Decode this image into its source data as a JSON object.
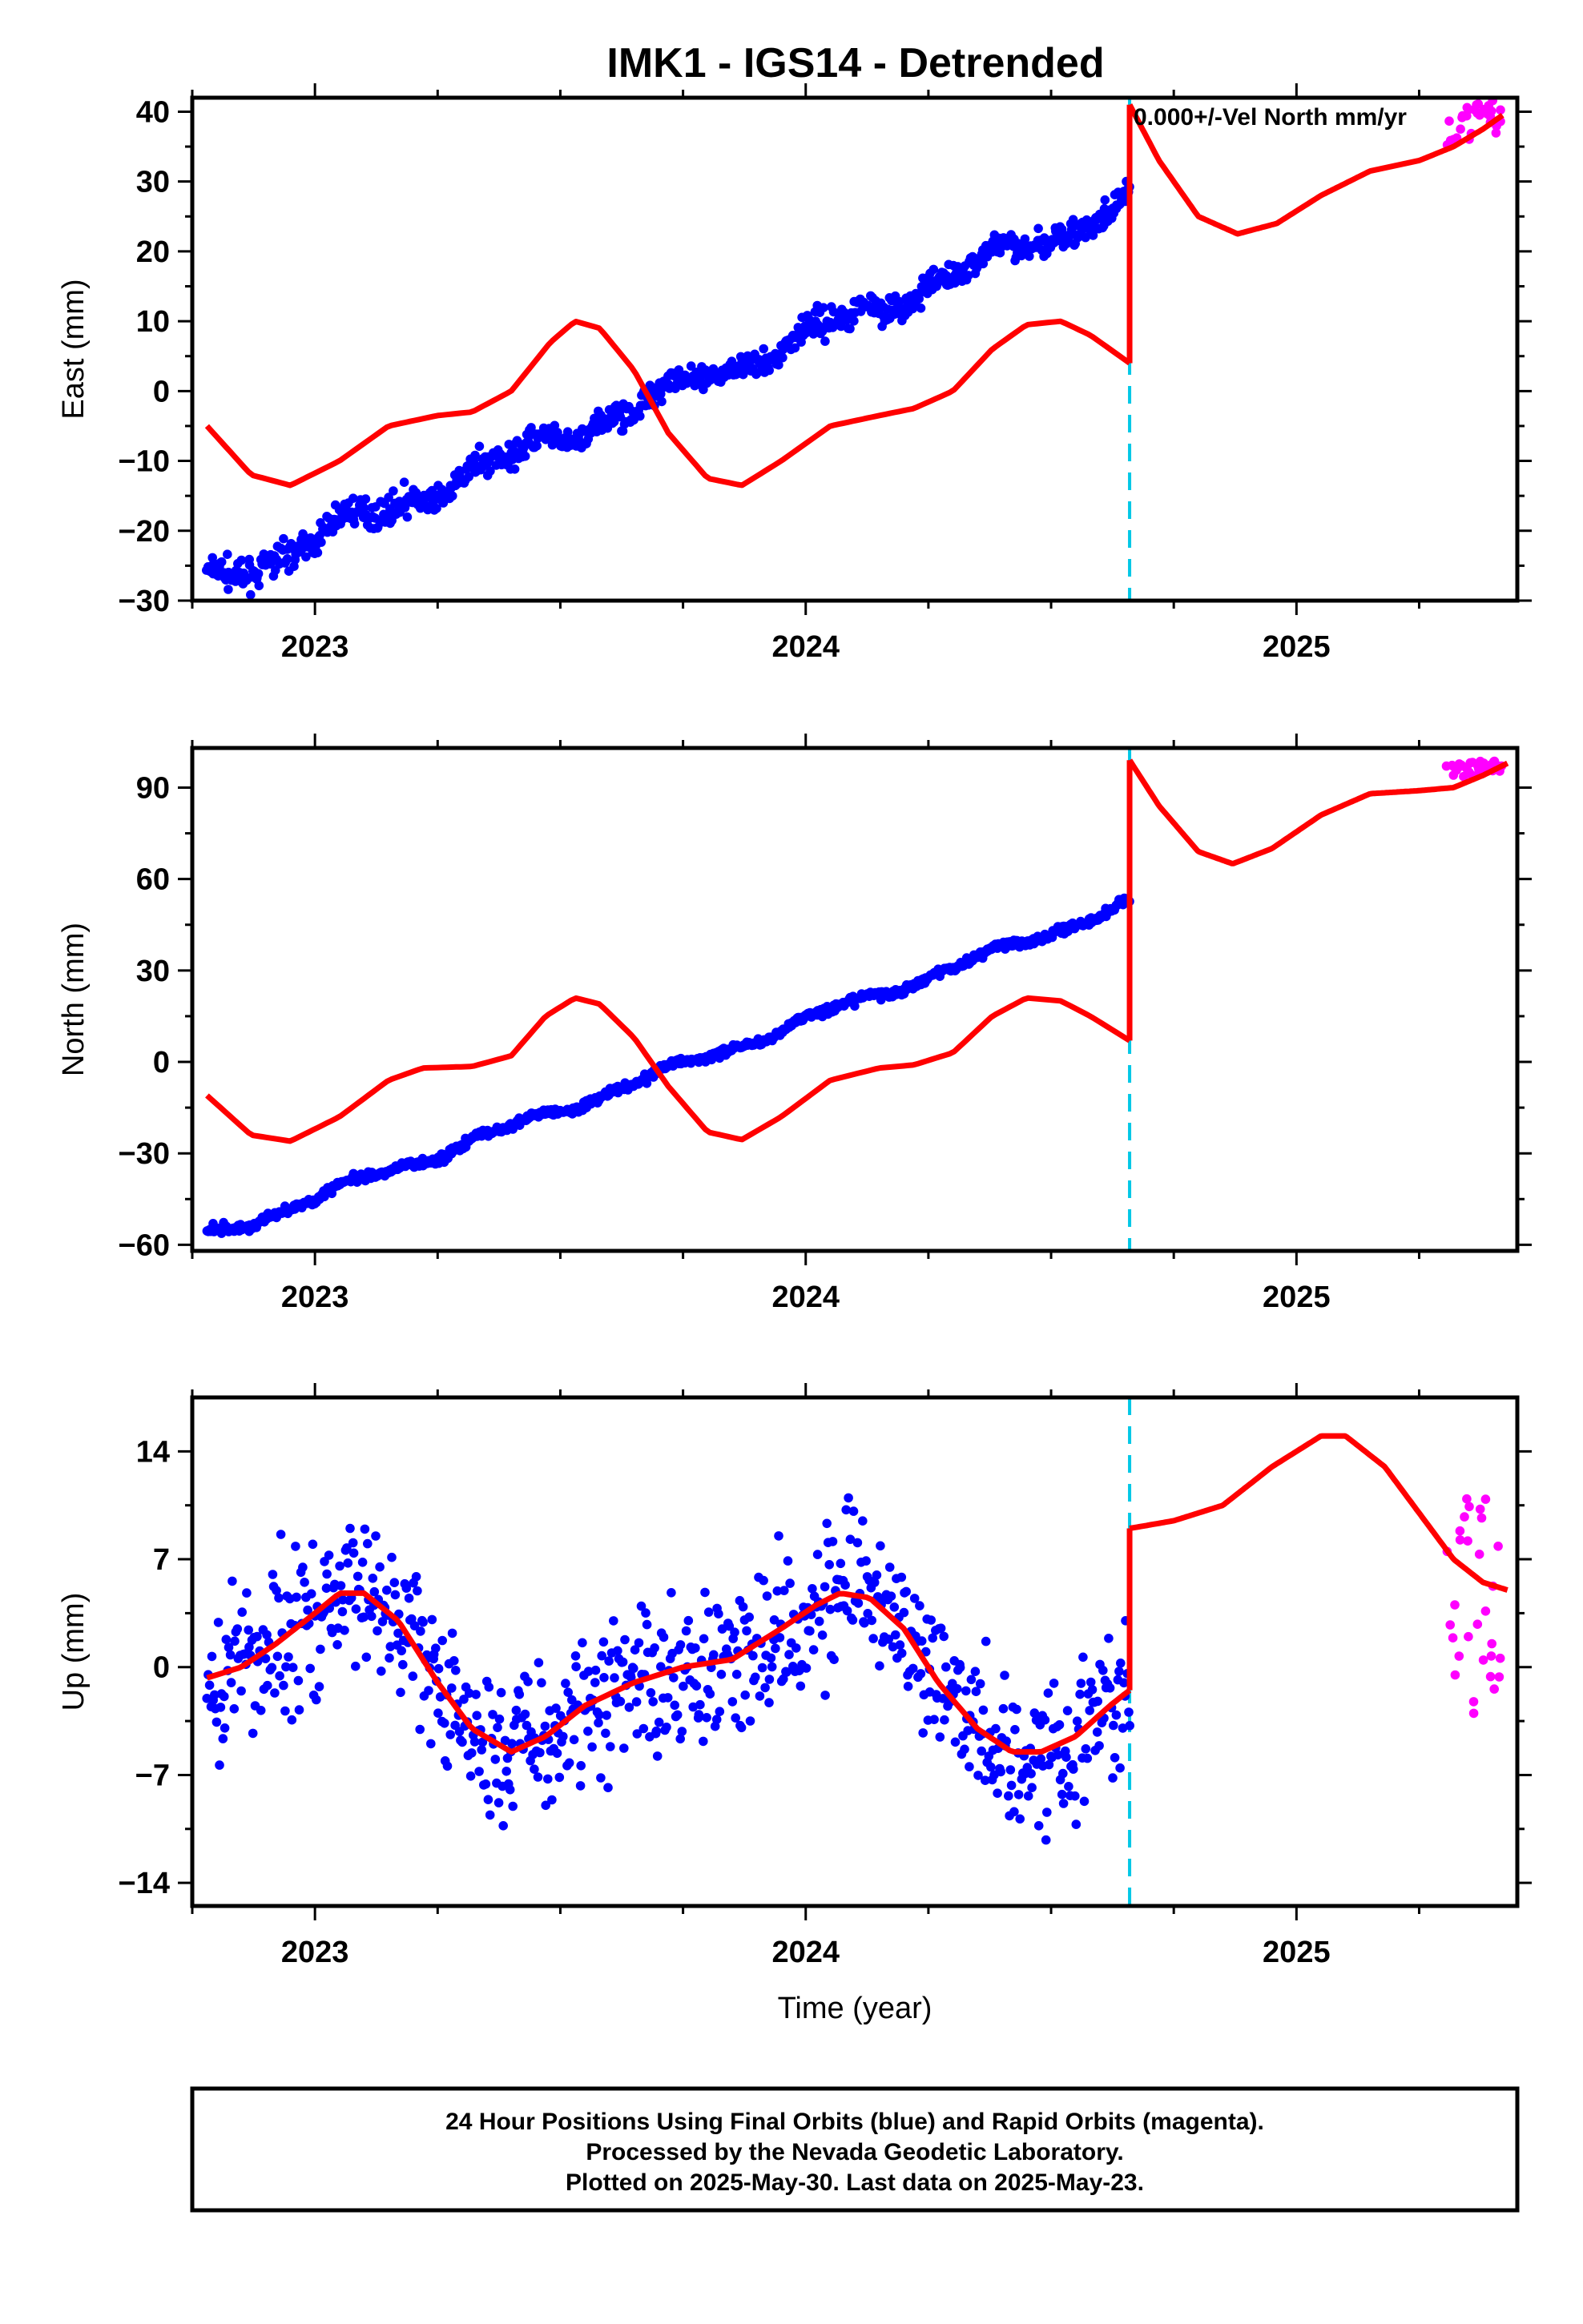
{
  "title": "IMK1 - IGS14 - Detrended",
  "annotation": "0.000+/-Vel North mm/yr",
  "colors": {
    "final": "#0000ff",
    "rapid": "#ff00ff",
    "model": "#ff0000",
    "offset": "#00c8e6"
  },
  "footer": {
    "line1": "24 Hour Positions Using Final Orbits (blue) and Rapid Orbits (magenta).",
    "line2": "Processed by the Nevada Geodetic Laboratory.",
    "line3": "Plotted on 2025-May-30. Last data on 2025-May-23."
  },
  "chart_data": [
    {
      "type": "scatter",
      "component": "east",
      "ylabel": "East (mm)",
      "xlabel": "",
      "xlim": [
        2022.75,
        2025.45
      ],
      "ylim": [
        -30,
        42
      ],
      "yticks": [
        -30,
        -20,
        -10,
        0,
        10,
        20,
        30,
        40
      ],
      "xticks": [
        2023,
        2024,
        2025
      ],
      "offset_epoch": 2024.66,
      "rapid_start": 2025.31,
      "final_trend": {
        "start": [
          2022.78,
          -27.5
        ],
        "end": [
          2024.66,
          27
        ]
      },
      "model": {
        "segment1": [
          [
            2022.78,
            -5
          ],
          [
            2022.87,
            -12
          ],
          [
            2022.95,
            -13.5
          ],
          [
            2023.05,
            -10
          ],
          [
            2023.15,
            -5
          ],
          [
            2023.25,
            -3.5
          ],
          [
            2023.32,
            -3
          ],
          [
            2023.4,
            0
          ],
          [
            2023.48,
            7
          ],
          [
            2023.53,
            10
          ],
          [
            2023.58,
            9
          ],
          [
            2023.65,
            3
          ],
          [
            2023.72,
            -6
          ],
          [
            2023.8,
            -12.5
          ],
          [
            2023.87,
            -13.5
          ],
          [
            2023.95,
            -10
          ],
          [
            2024.05,
            -5
          ],
          [
            2024.15,
            -3.5
          ],
          [
            2024.22,
            -2.5
          ],
          [
            2024.3,
            0
          ],
          [
            2024.38,
            6
          ],
          [
            2024.45,
            9.5
          ],
          [
            2024.52,
            10
          ],
          [
            2024.58,
            8
          ],
          [
            2024.66,
            4
          ]
        ],
        "segment2": [
          [
            2024.66,
            41
          ],
          [
            2024.72,
            33
          ],
          [
            2024.8,
            25
          ],
          [
            2024.88,
            22.5
          ],
          [
            2024.96,
            24
          ],
          [
            2025.05,
            28
          ],
          [
            2025.15,
            31.5
          ],
          [
            2025.25,
            33
          ],
          [
            2025.32,
            35
          ],
          [
            2025.38,
            37.5
          ],
          [
            2025.42,
            39.5
          ]
        ]
      },
      "scatter": {
        "final_noise": 1.4,
        "rapid_center": 37.5,
        "rapid_spread": 2.5
      }
    },
    {
      "type": "scatter",
      "component": "north",
      "ylabel": "North (mm)",
      "xlabel": "",
      "xlim": [
        2022.75,
        2025.45
      ],
      "ylim": [
        -62,
        103
      ],
      "yticks": [
        -60,
        -30,
        0,
        30,
        60,
        90
      ],
      "xticks": [
        2023,
        2024,
        2025
      ],
      "offset_epoch": 2024.66,
      "rapid_start": 2025.31,
      "final_trend": {
        "start": [
          2022.78,
          -57.5
        ],
        "end": [
          2024.66,
          52
        ]
      },
      "model": {
        "segment1": [
          [
            2022.78,
            -11
          ],
          [
            2022.87,
            -24
          ],
          [
            2022.95,
            -26
          ],
          [
            2023.05,
            -18
          ],
          [
            2023.15,
            -6
          ],
          [
            2023.22,
            -2
          ],
          [
            2023.32,
            -1.5
          ],
          [
            2023.4,
            2
          ],
          [
            2023.47,
            15
          ],
          [
            2023.53,
            21
          ],
          [
            2023.58,
            19
          ],
          [
            2023.65,
            8
          ],
          [
            2023.72,
            -8
          ],
          [
            2023.8,
            -23
          ],
          [
            2023.87,
            -25.5
          ],
          [
            2023.95,
            -18
          ],
          [
            2024.05,
            -6
          ],
          [
            2024.15,
            -2
          ],
          [
            2024.22,
            -1
          ],
          [
            2024.3,
            3
          ],
          [
            2024.38,
            15
          ],
          [
            2024.45,
            21
          ],
          [
            2024.52,
            20
          ],
          [
            2024.58,
            15
          ],
          [
            2024.66,
            7
          ]
        ],
        "segment2": [
          [
            2024.66,
            99
          ],
          [
            2024.72,
            84
          ],
          [
            2024.8,
            69
          ],
          [
            2024.87,
            65
          ],
          [
            2024.95,
            70
          ],
          [
            2025.05,
            81
          ],
          [
            2025.15,
            88
          ],
          [
            2025.25,
            89
          ],
          [
            2025.32,
            90
          ],
          [
            2025.38,
            94
          ],
          [
            2025.43,
            98
          ]
        ]
      },
      "scatter": {
        "final_noise": 1.0,
        "rapid_center": 95,
        "rapid_spread": 2.5
      }
    },
    {
      "type": "scatter",
      "component": "up",
      "ylabel": "Up (mm)",
      "xlabel": "Time (year)",
      "xlim": [
        2022.75,
        2025.45
      ],
      "ylim": [
        -15.5,
        17.5
      ],
      "yticks": [
        -14,
        -7,
        0,
        7,
        14
      ],
      "xticks": [
        2023,
        2024,
        2025
      ],
      "offset_epoch": 2024.66,
      "rapid_start": 2025.31,
      "final_trend": {
        "start": [
          2022.78,
          0
        ],
        "end": [
          2024.66,
          0
        ]
      },
      "model": {
        "segment1": [
          [
            2022.78,
            -0.7
          ],
          [
            2022.85,
            0
          ],
          [
            2022.92,
            1.5
          ],
          [
            2023.0,
            3.5
          ],
          [
            2023.05,
            4.8
          ],
          [
            2023.1,
            4.8
          ],
          [
            2023.17,
            3
          ],
          [
            2023.25,
            -1
          ],
          [
            2023.32,
            -4
          ],
          [
            2023.4,
            -5.5
          ],
          [
            2023.47,
            -4.5
          ],
          [
            2023.55,
            -2.5
          ],
          [
            2023.65,
            -1
          ],
          [
            2023.75,
            0
          ],
          [
            2023.85,
            0.5
          ],
          [
            2023.95,
            2.5
          ],
          [
            2024.02,
            4
          ],
          [
            2024.07,
            4.8
          ],
          [
            2024.13,
            4.5
          ],
          [
            2024.2,
            2.5
          ],
          [
            2024.27,
            -1
          ],
          [
            2024.35,
            -4
          ],
          [
            2024.42,
            -5.5
          ],
          [
            2024.48,
            -5.5
          ],
          [
            2024.55,
            -4.5
          ],
          [
            2024.62,
            -2.5
          ],
          [
            2024.66,
            -1.5
          ]
        ],
        "segment2": [
          [
            2024.66,
            9
          ],
          [
            2024.75,
            9.5
          ],
          [
            2024.85,
            10.5
          ],
          [
            2024.95,
            13
          ],
          [
            2025.05,
            15
          ],
          [
            2025.1,
            15
          ],
          [
            2025.18,
            13
          ],
          [
            2025.25,
            10
          ],
          [
            2025.32,
            7
          ],
          [
            2025.38,
            5.5
          ],
          [
            2025.43,
            5
          ]
        ]
      },
      "scatter": {
        "final_noise": 3.6,
        "rapid_center": 4,
        "rapid_spread": 8
      }
    }
  ]
}
